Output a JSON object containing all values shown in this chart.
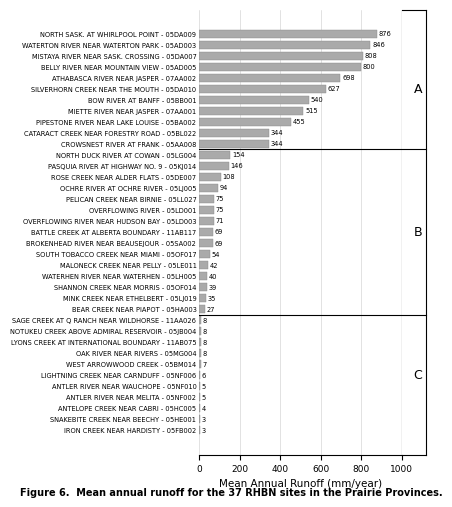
{
  "labels": [
    "NORTH SASK. AT WHIRLPOOL POINT - 05DA009",
    "WATERTON RIVER NEAR WATERTON PARK - 05AD003",
    "MISTAYA RIVER NEAR SASK. CROSSING - 05DA007",
    "BELLY RIVER NEAR MOUNTAIN VIEW - 05AD005",
    "ATHABASCA RIVER NEAR JASPER - 07AA002",
    "SILVERHORN CREEK NEAR THE MOUTH - 05DA010",
    "BOW RIVER AT BANFF - 05BB001",
    "MIETTE RIVER NEAR JASPER - 07AA001",
    "PIPESTONE RIVER NEAR LAKE LOUISE - 05BA002",
    "CATARACT CREEK NEAR FORESTRY ROAD - 05BL022",
    "CROWSNEST RIVER AT FRANK - 05AA008",
    "NORTH DUCK RIVER AT COWAN - 05LG004",
    "PASQUIA RIVER AT HIGHWAY NO. 9 - 05KJ014",
    "ROSE CREEK NEAR ALDER FLATS - 05DE007",
    "OCHRE RIVER AT OCHRE RIVER - 05LJ005",
    "PELICAN CREEK NEAR BIRNIE - 05LL027",
    "OVERFLOWING RIVER - 05LD001",
    "OVERFLOWING RIVER NEAR HUDSON BAY - 05LD003",
    "BATTLE CREEK AT ALBERTA BOUNDARY - 11AB117",
    "BROKENHEAD RIVER NEAR BEAUSEJOUR - 05SA002",
    "SOUTH TOBACCO CREEK NEAR MIAMI - 05OF017",
    "MALONECK CREEK NEAR PELLY - 05LE011",
    "WATERHEN RIVER NEAR WATERHEN - 05LH005",
    "SHANNON CREEK NEAR MORRIS - 05OF014",
    "MINK CREEK NEAR ETHELBERT - 05LJ019",
    "BEAR CREEK NEAR PIAPOT - 05HA003",
    "SAGE CREEK AT Q RANCH NEAR WILDHORSE - 11AA026",
    "NOTUKEU CREEK ABOVE ADMIRAL RESERVOIR - 05JB004",
    "LYONS CREEK AT INTERNATIONAL BOUNDARY - 11AB075",
    "OAK RIVER NEAR RIVERS - 05MG004",
    "WEST ARROWWOOD CREEK - 05BM014",
    "LIGHTNING CREEK NEAR CARNDUFF - 05NF006",
    "ANTLER RIVER NEAR WAUCHOPE - 05NF010",
    "ANTLER RIVER NEAR MELITA - 05NF002",
    "ANTELOPE CREEK NEAR CABRI - 05HC005",
    "SNAKEBITE CREEK NEAR BEECHY - 05HE001",
    "IRON CREEK NEAR HARDISTY - 05FB002"
  ],
  "values": [
    876,
    846,
    808,
    800,
    698,
    627,
    540,
    515,
    455,
    344,
    344,
    154,
    146,
    108,
    94,
    75,
    75,
    71,
    69,
    69,
    54,
    42,
    40,
    39,
    35,
    27,
    8,
    8,
    8,
    8,
    7,
    6,
    5,
    5,
    4,
    3,
    3
  ],
  "n_A": 11,
  "n_B": 15,
  "n_C": 11,
  "bar_color": "#aaaaaa",
  "bar_edge_color": "#888888",
  "title": "Figure 6.  Mean annual runoff for the 37 RHBN sites in the Prairie Provinces.",
  "xlabel": "Mean Annual Runoff (mm/year)",
  "xlim": [
    0,
    1000
  ],
  "xticks": [
    0,
    200,
    400,
    600,
    800,
    1000
  ],
  "label_fontsize": 4.8,
  "value_fontsize": 4.8,
  "xlabel_fontsize": 7.5,
  "title_fontsize": 7.0,
  "group_letter_fontsize": 9
}
